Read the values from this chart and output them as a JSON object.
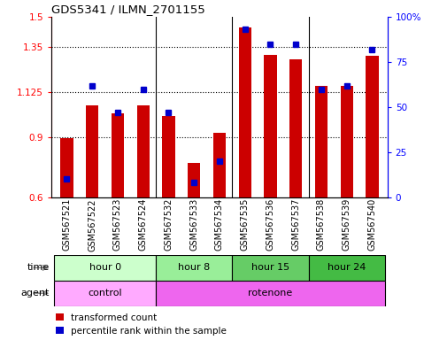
{
  "title": "GDS5341 / ILMN_2701155",
  "samples": [
    "GSM567521",
    "GSM567522",
    "GSM567523",
    "GSM567524",
    "GSM567532",
    "GSM567533",
    "GSM567534",
    "GSM567535",
    "GSM567536",
    "GSM567537",
    "GSM567538",
    "GSM567539",
    "GSM567540"
  ],
  "red_values": [
    0.895,
    1.06,
    1.02,
    1.06,
    1.005,
    0.77,
    0.92,
    1.45,
    1.31,
    1.29,
    1.155,
    1.155,
    1.305
  ],
  "blue_values": [
    10,
    62,
    47,
    60,
    47,
    8,
    20,
    93,
    85,
    85,
    60,
    62,
    82
  ],
  "ylim_left": [
    0.6,
    1.5
  ],
  "ylim_right": [
    0,
    100
  ],
  "yticks_left": [
    0.6,
    0.9,
    1.125,
    1.35,
    1.5
  ],
  "ytick_labels_left": [
    "0.6",
    "0.9",
    "1.125",
    "1.35",
    "1.5"
  ],
  "yticks_right": [
    0,
    25,
    50,
    75,
    100
  ],
  "ytick_labels_right": [
    "0",
    "25",
    "50",
    "75",
    "100%"
  ],
  "hlines": [
    0.9,
    1.125,
    1.35
  ],
  "time_groups": [
    {
      "label": "hour 0",
      "start": 0,
      "end": 4,
      "color": "#ccffcc"
    },
    {
      "label": "hour 8",
      "start": 4,
      "end": 7,
      "color": "#99ee99"
    },
    {
      "label": "hour 15",
      "start": 7,
      "end": 10,
      "color": "#66cc66"
    },
    {
      "label": "hour 24",
      "start": 10,
      "end": 13,
      "color": "#44bb44"
    }
  ],
  "agent_groups": [
    {
      "label": "control",
      "start": 0,
      "end": 4,
      "color": "#ffaaff"
    },
    {
      "label": "rotenone",
      "start": 4,
      "end": 13,
      "color": "#ee66ee"
    }
  ],
  "bar_color": "#cc0000",
  "dot_color": "#0000cc",
  "bar_width": 0.5,
  "baseline": 0.6,
  "legend_red": "transformed count",
  "legend_blue": "percentile rank within the sample",
  "time_label": "time",
  "agent_label": "agent",
  "group_boundaries": [
    3.5,
    6.5,
    9.5
  ]
}
